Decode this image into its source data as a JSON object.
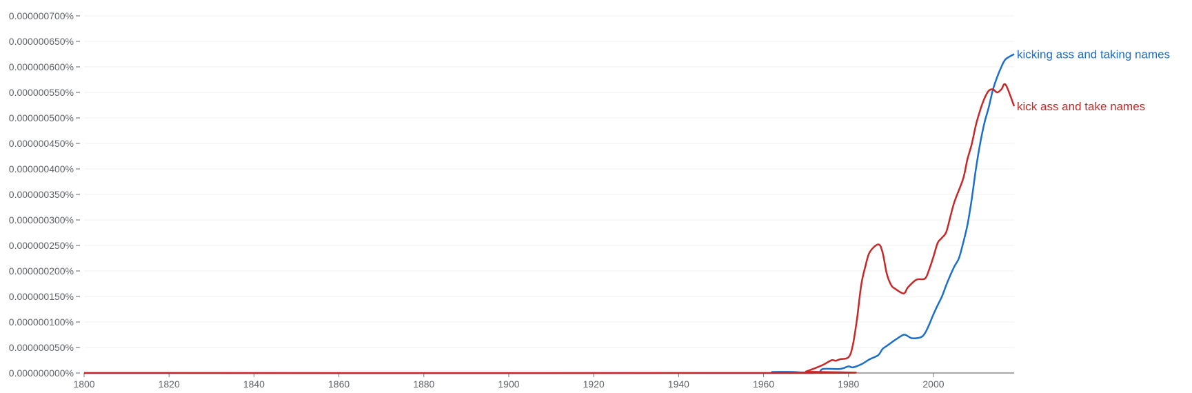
{
  "chart_data": {
    "type": "line",
    "title": "",
    "xlabel": "",
    "ylabel": "",
    "xlim": [
      1800,
      2019
    ],
    "ylim": [
      0,
      7e-07
    ],
    "grid": true,
    "legend": "inline-right",
    "x_ticks": [
      "1800",
      "1820",
      "1840",
      "1860",
      "1880",
      "1900",
      "1920",
      "1940",
      "1960",
      "1980",
      "2000"
    ],
    "y_ticks": [
      "0.000000000%",
      "0.000000050%",
      "0.000000100%",
      "0.000000150%",
      "0.000000200%",
      "0.000000250%",
      "0.000000300%",
      "0.000000350%",
      "0.000000400%",
      "0.000000450%",
      "0.000000500%",
      "0.000000550%",
      "0.000000600%",
      "0.000000650%",
      "0.000000700%"
    ],
    "series": [
      {
        "name": "kicking ass and taking names",
        "color": "#1a6ecc",
        "points": [
          [
            1800,
            0
          ],
          [
            1961,
            0
          ],
          [
            1962,
            2e-09
          ],
          [
            1967,
            2e-09
          ],
          [
            1969,
            1e-09
          ],
          [
            1970,
            0
          ],
          [
            1973,
            1e-09
          ],
          [
            1974,
            8e-09
          ],
          [
            1978,
            8e-09
          ],
          [
            1980,
            1.3e-08
          ],
          [
            1981,
            1.1e-08
          ],
          [
            1983,
            1.7e-08
          ],
          [
            1985,
            2.7e-08
          ],
          [
            1987,
            3.5e-08
          ],
          [
            1988,
            4.7e-08
          ],
          [
            1989,
            5.3e-08
          ],
          [
            1991,
            6.5e-08
          ],
          [
            1993,
            7.5e-08
          ],
          [
            1994,
            7.2e-08
          ],
          [
            1995,
            6.8e-08
          ],
          [
            1997,
            7e-08
          ],
          [
            1998,
            7.8e-08
          ],
          [
            1999,
            9.5e-08
          ],
          [
            2000,
            1.15e-07
          ],
          [
            2001,
            1.33e-07
          ],
          [
            2002,
            1.5e-07
          ],
          [
            2003,
            1.72e-07
          ],
          [
            2004,
            1.92e-07
          ],
          [
            2005,
            2.1e-07
          ],
          [
            2006,
            2.25e-07
          ],
          [
            2007,
            2.55e-07
          ],
          [
            2008,
            2.9e-07
          ],
          [
            2009,
            3.4e-07
          ],
          [
            2010,
            4e-07
          ],
          [
            2011,
            4.5e-07
          ],
          [
            2012,
            4.9e-07
          ],
          [
            2013,
            5.2e-07
          ],
          [
            2014,
            5.55e-07
          ],
          [
            2015,
            5.8e-07
          ],
          [
            2016,
            6e-07
          ],
          [
            2017,
            6.15e-07
          ],
          [
            2019,
            6.25e-07
          ]
        ]
      },
      {
        "name": "kick ass and take names",
        "color": "#c62828",
        "points": [
          [
            1800,
            0
          ],
          [
            1969,
            0
          ],
          [
            1970,
            3e-09
          ],
          [
            1972,
            9e-09
          ],
          [
            1974,
            1.6e-08
          ],
          [
            1976,
            2.5e-08
          ],
          [
            1977,
            2.4e-08
          ],
          [
            1978,
            2.7e-08
          ],
          [
            1980,
            3.1e-08
          ],
          [
            1981,
            5.4e-08
          ],
          [
            1982,
            1.06e-07
          ],
          [
            1983,
            1.73e-07
          ],
          [
            1984,
            2.1e-07
          ],
          [
            1985,
            2.37e-07
          ],
          [
            1987,
            2.52e-07
          ],
          [
            1988,
            2.37e-07
          ],
          [
            1989,
            1.95e-07
          ],
          [
            1990,
            1.73e-07
          ],
          [
            1991,
            1.65e-07
          ],
          [
            1993,
            1.56e-07
          ],
          [
            1994,
            1.68e-07
          ],
          [
            1996,
            1.83e-07
          ],
          [
            1998,
            1.85e-07
          ],
          [
            1999,
            2.03e-07
          ],
          [
            2000,
            2.28e-07
          ],
          [
            2001,
            2.55e-07
          ],
          [
            2002,
            2.65e-07
          ],
          [
            2003,
            2.76e-07
          ],
          [
            2004,
            3.07e-07
          ],
          [
            2005,
            3.37e-07
          ],
          [
            2007,
            3.81e-07
          ],
          [
            2008,
            4.19e-07
          ],
          [
            2009,
            4.48e-07
          ],
          [
            2010,
            4.86e-07
          ],
          [
            2011,
            5.15e-07
          ],
          [
            2012,
            5.38e-07
          ],
          [
            2013,
            5.53e-07
          ],
          [
            2014,
            5.56e-07
          ],
          [
            2015,
            5.5e-07
          ],
          [
            2016,
            5.56e-07
          ],
          [
            2017,
            5.65e-07
          ],
          [
            2019,
            5.23e-07
          ]
        ]
      }
    ]
  }
}
